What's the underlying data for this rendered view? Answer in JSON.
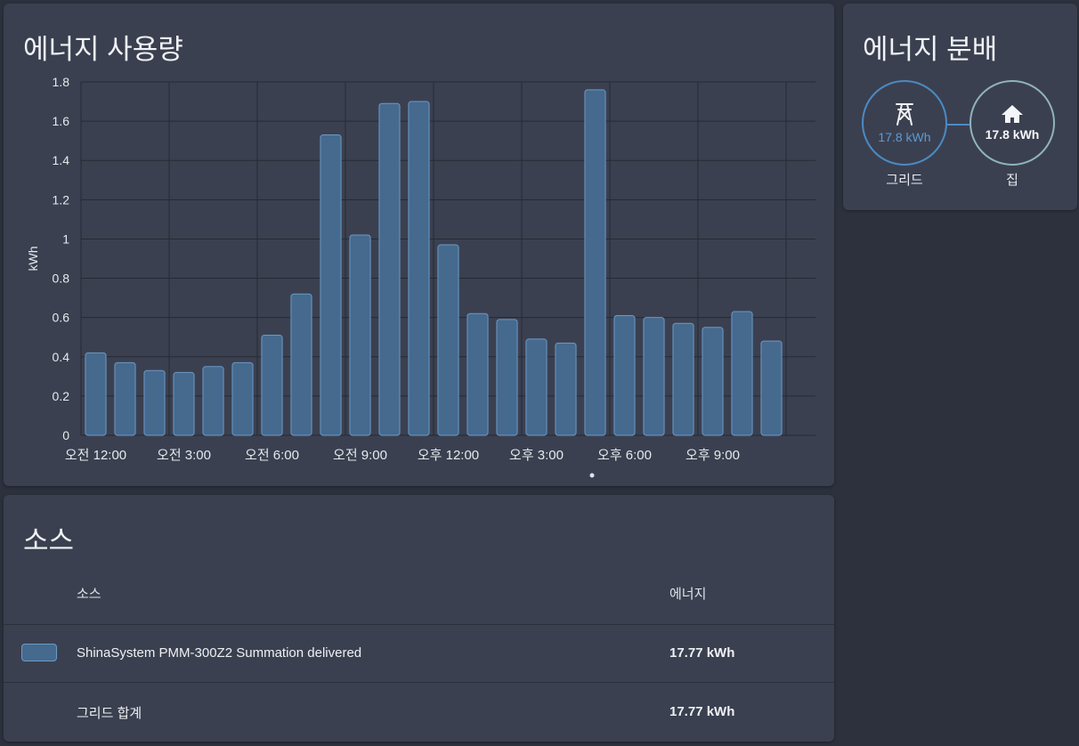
{
  "usage": {
    "title": "에너지 사용량"
  },
  "chart_data": {
    "type": "bar",
    "title": "에너지 사용량",
    "xlabel": "",
    "ylabel": "kWh",
    "ylim": [
      0,
      1.8
    ],
    "yticks": [
      "0",
      "0.2",
      "0.4",
      "0.6",
      "0.8",
      "1",
      "1.2",
      "1.4",
      "1.6",
      "1.8"
    ],
    "x_tick_labels": [
      "오전 12:00",
      "오전 3:00",
      "오전 6:00",
      "오전 9:00",
      "오후 12:00",
      "오후 3:00",
      "오후 6:00",
      "오후 9:00"
    ],
    "categories": [
      "00",
      "01",
      "02",
      "03",
      "04",
      "05",
      "06",
      "07",
      "08",
      "09",
      "10",
      "11",
      "12",
      "13",
      "14",
      "15",
      "16",
      "17",
      "18",
      "19",
      "20",
      "21",
      "22",
      "23"
    ],
    "series": [
      {
        "name": "ShinaSystem PMM-300Z2 Summation delivered",
        "values": [
          0.42,
          0.37,
          0.33,
          0.32,
          0.35,
          0.37,
          0.51,
          0.72,
          1.53,
          1.02,
          1.69,
          1.7,
          0.97,
          0.62,
          0.59,
          0.49,
          0.47,
          1.76,
          0.61,
          0.6,
          0.57,
          0.55,
          0.63,
          0.48
        ]
      }
    ],
    "bar_color": "#46698e",
    "bar_border_color": "#6b9ac8"
  },
  "distribution": {
    "title": "에너지 분배",
    "grid": {
      "label": "그리드",
      "value": "17.8 kWh",
      "icon": "transmission-tower-icon"
    },
    "home": {
      "label": "집",
      "value": "17.8 kWh",
      "icon": "home-icon"
    }
  },
  "sources": {
    "title": "소스",
    "headers": {
      "source": "소스",
      "energy": "에너지"
    },
    "rows": [
      {
        "name": "ShinaSystem PMM-300Z2 Summation delivered",
        "energy": "17.77 kWh"
      }
    ],
    "total": {
      "label": "그리드 합계",
      "energy": "17.77 kWh"
    }
  },
  "colors": {
    "background": "#2c313d",
    "card": "#3b4050",
    "grid_accent": "#4a8bc4",
    "home_accent": "#8fb3bd"
  }
}
